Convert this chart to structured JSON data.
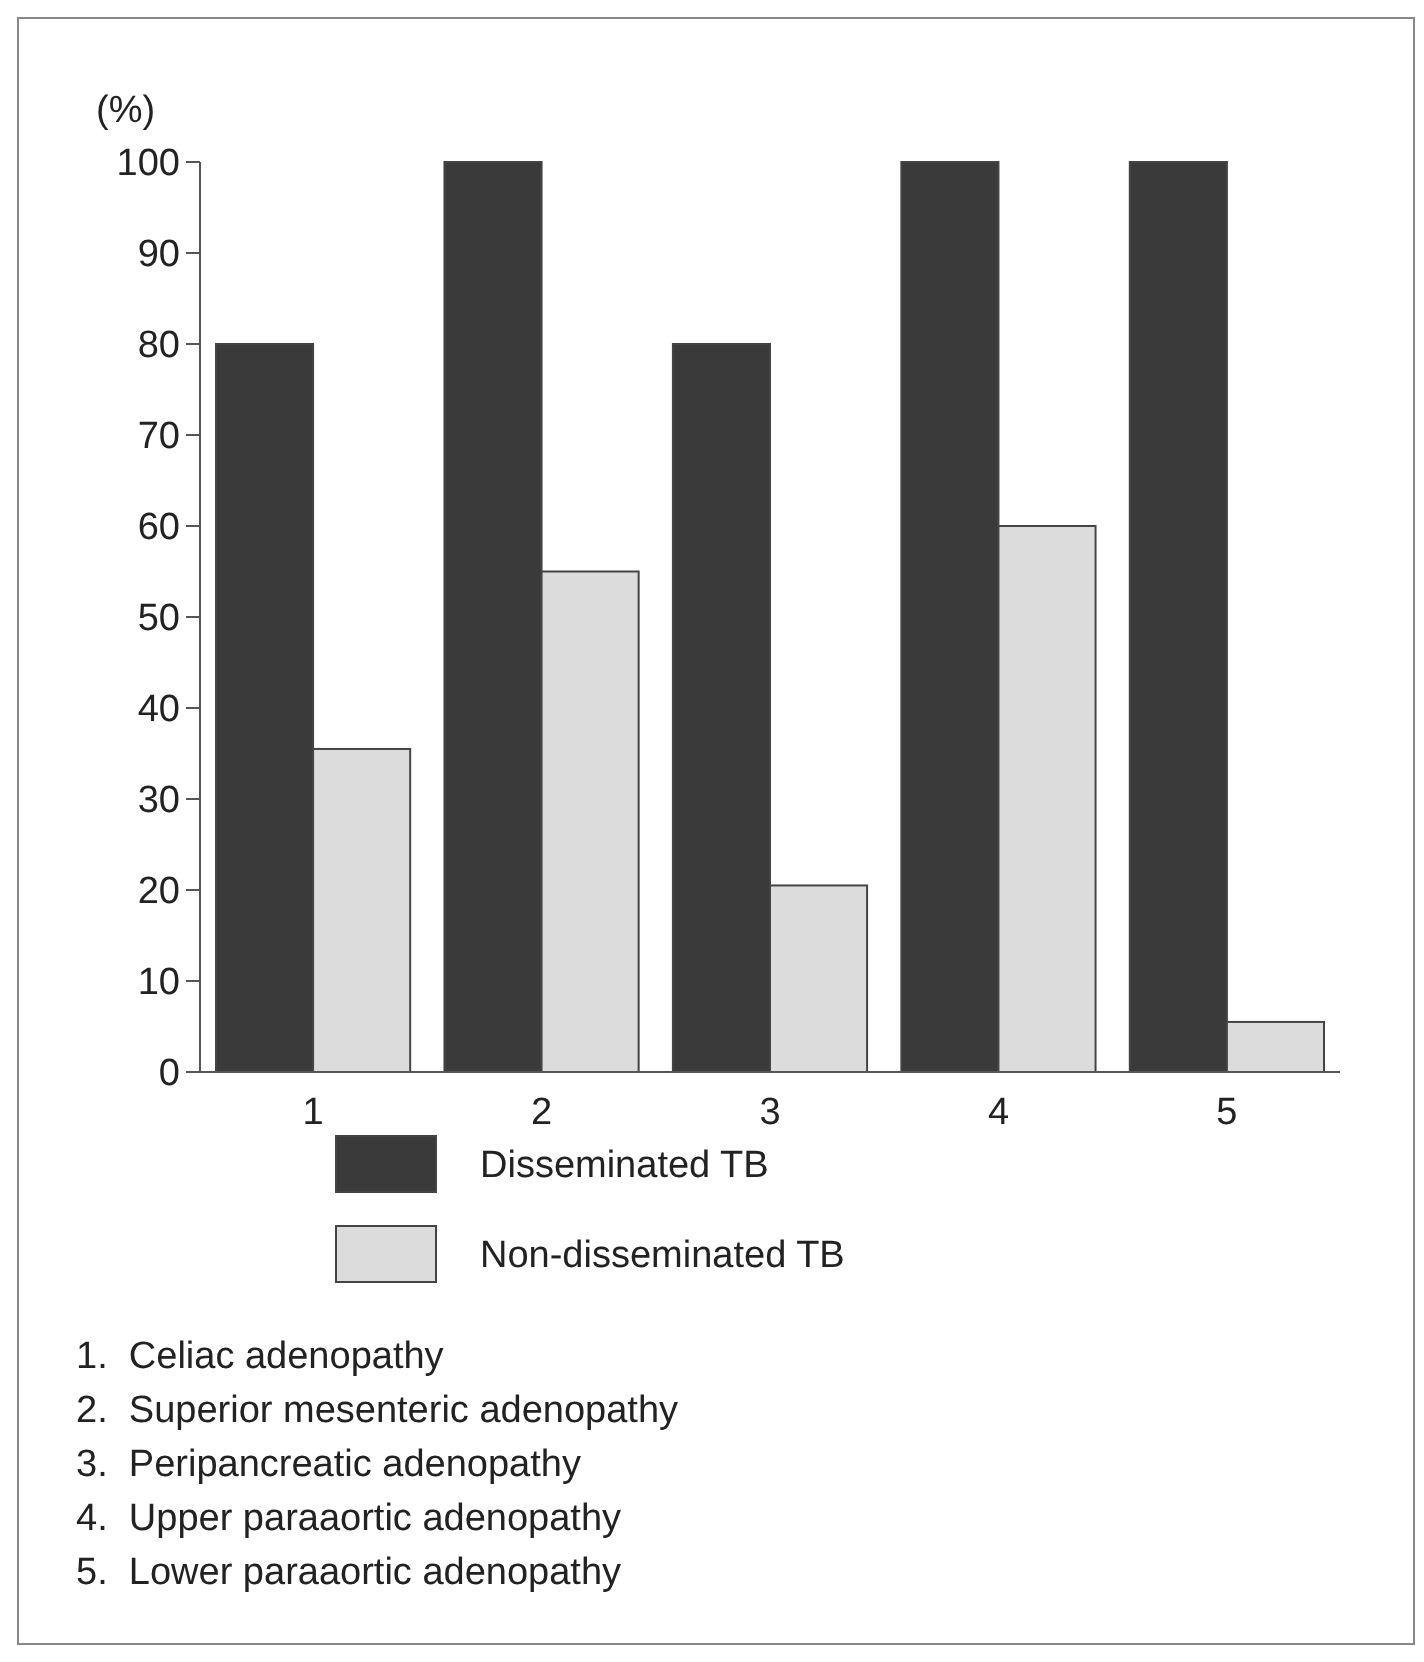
{
  "chart_data": {
    "type": "bar",
    "ylabel": "(%)",
    "categories": [
      "1",
      "2",
      "3",
      "4",
      "5"
    ],
    "series": [
      {
        "name": "Disseminated TB",
        "color": "#3a3a3a",
        "values": [
          80,
          100,
          80,
          100,
          100
        ]
      },
      {
        "name": "Non-disseminated TB",
        "color": "#dcdcdc",
        "values": [
          35.5,
          55,
          20.5,
          60,
          5.5
        ]
      }
    ],
    "ylim": [
      0,
      100
    ],
    "yticks": [
      0,
      10,
      20,
      30,
      40,
      50,
      60,
      70,
      80,
      90,
      100
    ],
    "grid": false,
    "legend": "bottom",
    "annotations": [
      "1.  Celiac adenopathy",
      "2.  Superior mesenteric adenopathy",
      "3.  Peripancreatic adenopathy",
      "4.  Upper paraaortic adenopathy",
      "5.  Lower paraaortic adenopathy"
    ]
  }
}
